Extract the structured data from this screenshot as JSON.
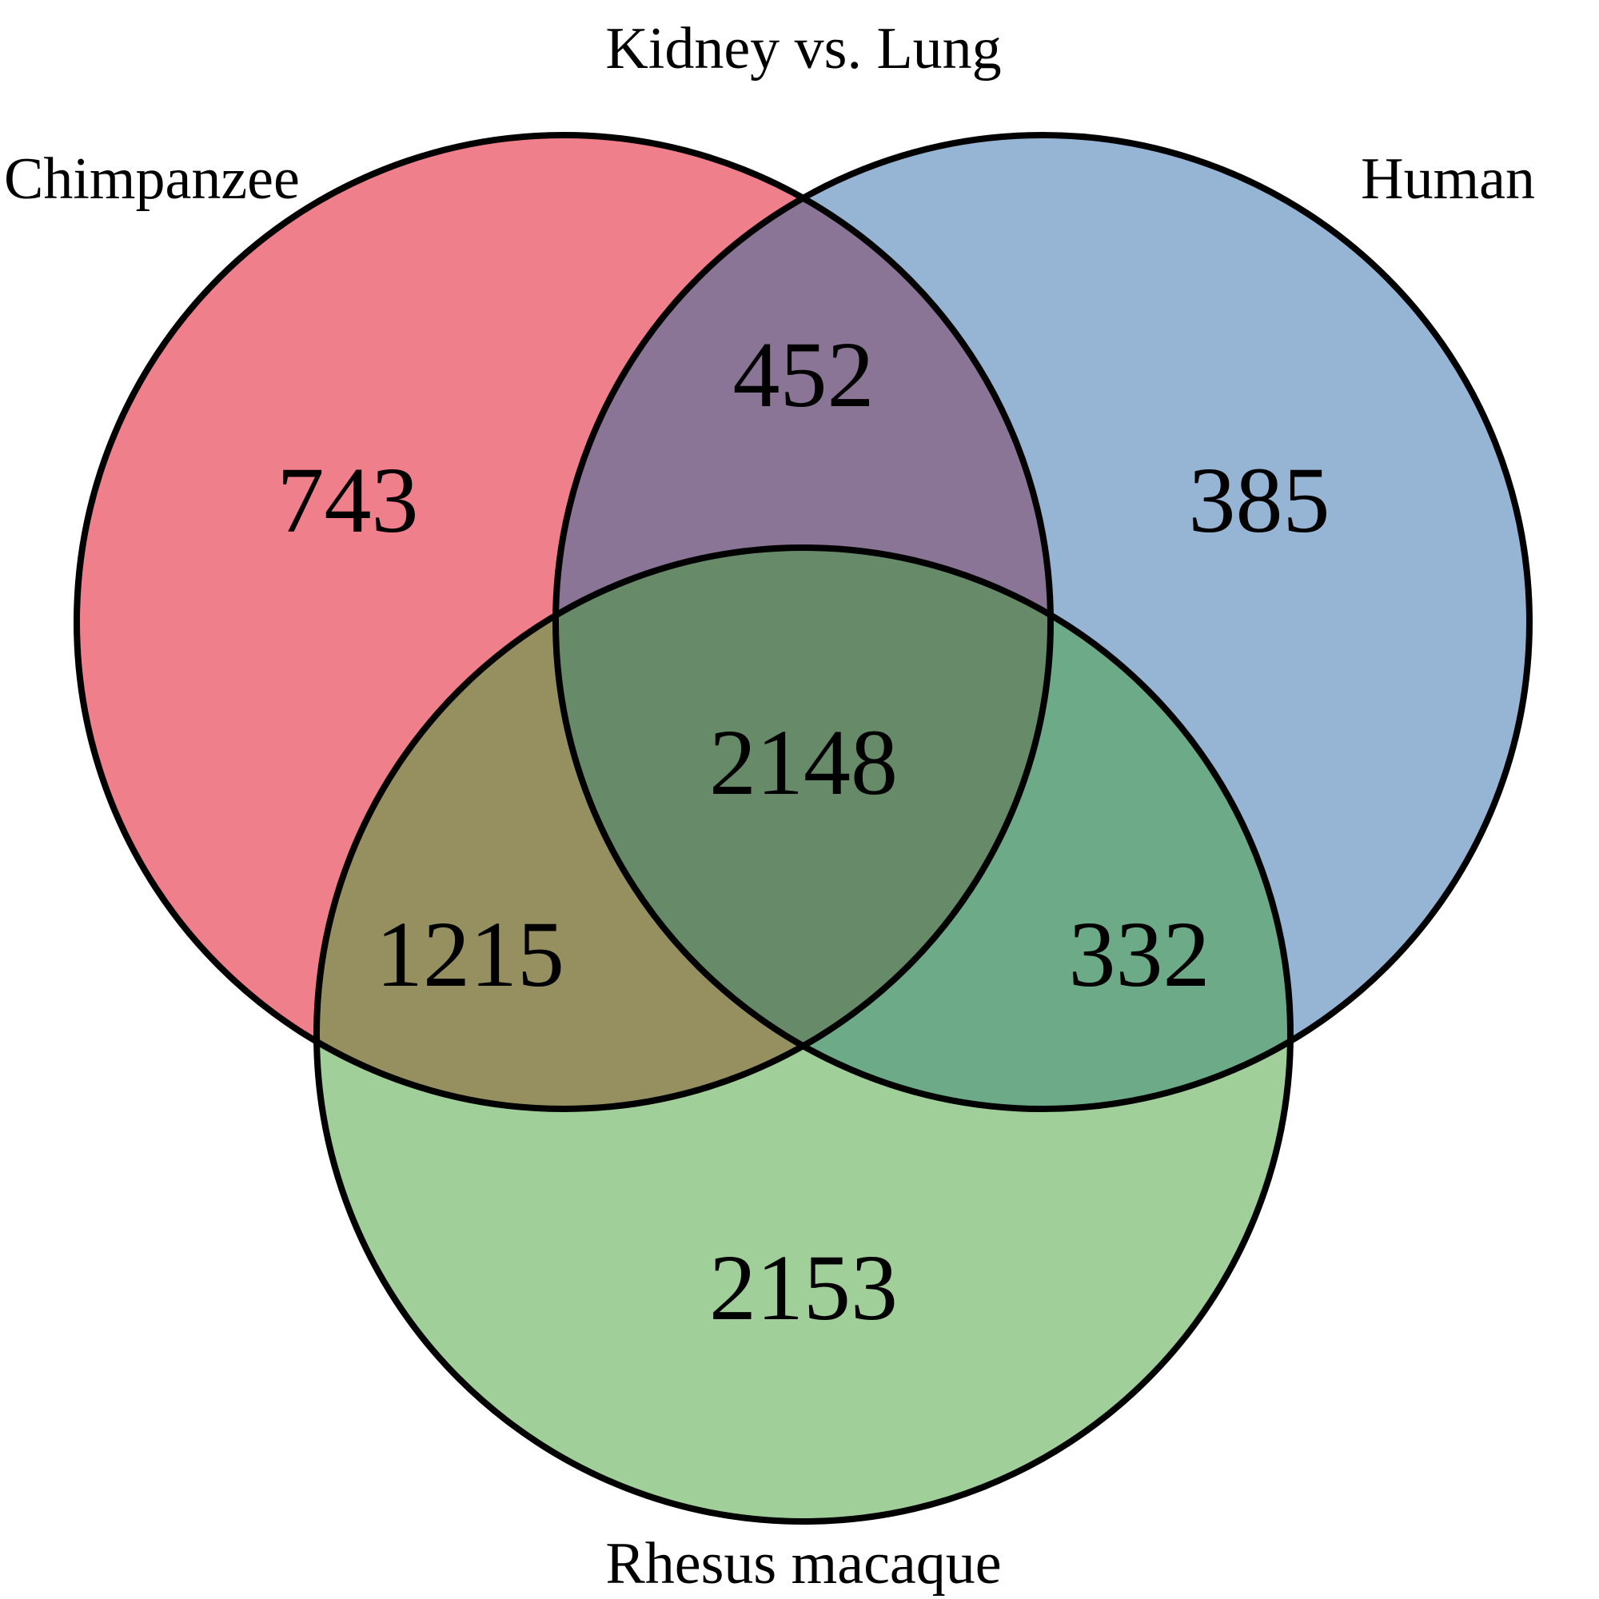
{
  "title": "Kidney vs. Lung",
  "sets": {
    "chimpanzee": {
      "label": "Chimpanzee",
      "color": "#ef7f8a"
    },
    "human": {
      "label": "Human",
      "color": "#96b4d4"
    },
    "rhesus": {
      "label": "Rhesus macaque",
      "color": "#a1cf99"
    }
  },
  "regions": {
    "chimpanzee_only": {
      "value": "743",
      "color": "#ef7f8a"
    },
    "human_only": {
      "value": "385",
      "color": "#96b4d4"
    },
    "rhesus_only": {
      "value": "2153",
      "color": "#a1cf99"
    },
    "chimpanzee_human": {
      "value": "452",
      "color": "#8b7596"
    },
    "chimpanzee_rhesus": {
      "value": "1215",
      "color": "#969061"
    },
    "human_rhesus": {
      "value": "332",
      "color": "#6dab88"
    },
    "all_three": {
      "value": "2148",
      "color": "#678b69"
    }
  }
}
